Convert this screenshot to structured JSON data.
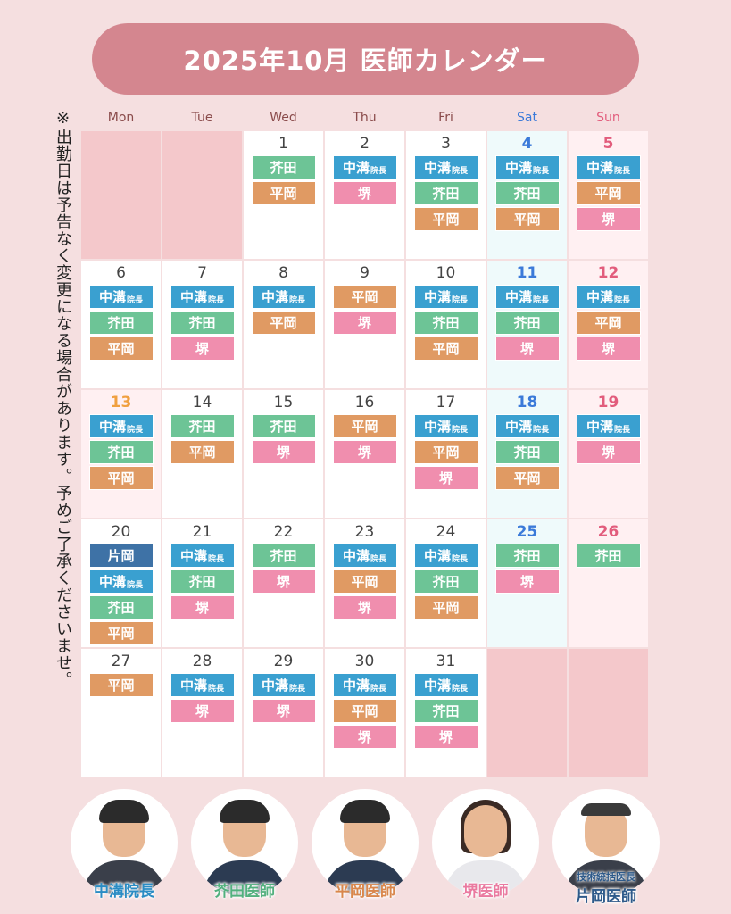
{
  "title": "2025年10月 医師カレンダー",
  "notice": "※出勤日は予告なく変更になる場合があります。予めご了承くださいませ。",
  "colors": {
    "banner": "#d4868f",
    "nakamizo": "#3aa0d0",
    "akuta": "#6dc496",
    "hiraoka": "#e09a63",
    "sakai": "#f08eae",
    "kataoka": "#3e72a6"
  },
  "weekdays": [
    {
      "label": "Mon",
      "kind": "weekday"
    },
    {
      "label": "Tue",
      "kind": "weekday"
    },
    {
      "label": "Wed",
      "kind": "weekday"
    },
    {
      "label": "Thu",
      "kind": "weekday"
    },
    {
      "label": "Fri",
      "kind": "weekday"
    },
    {
      "label": "Sat",
      "kind": "sat"
    },
    {
      "label": "Sun",
      "kind": "sun"
    }
  ],
  "doctor_labels": {
    "nakamizo": {
      "text": "中溝",
      "suffix": "院長"
    },
    "akuta": {
      "text": "芥田",
      "suffix": ""
    },
    "hiraoka": {
      "text": "平岡",
      "suffix": ""
    },
    "sakai": {
      "text": "堺",
      "suffix": ""
    },
    "kataoka": {
      "text": "片岡",
      "suffix": ""
    }
  },
  "weeks": [
    [
      {
        "day": "",
        "kind": "empty",
        "doctors": []
      },
      {
        "day": "",
        "kind": "empty",
        "doctors": []
      },
      {
        "day": "1",
        "kind": "weekday",
        "doctors": [
          "akuta",
          "hiraoka"
        ]
      },
      {
        "day": "2",
        "kind": "weekday",
        "doctors": [
          "nakamizo",
          "sakai"
        ]
      },
      {
        "day": "3",
        "kind": "weekday",
        "doctors": [
          "nakamizo",
          "akuta",
          "hiraoka"
        ]
      },
      {
        "day": "4",
        "kind": "sat",
        "doctors": [
          "nakamizo",
          "akuta",
          "hiraoka"
        ]
      },
      {
        "day": "5",
        "kind": "sun",
        "doctors": [
          "nakamizo",
          "hiraoka",
          "sakai"
        ]
      }
    ],
    [
      {
        "day": "6",
        "kind": "weekday",
        "doctors": [
          "nakamizo",
          "akuta",
          "hiraoka"
        ]
      },
      {
        "day": "7",
        "kind": "weekday",
        "doctors": [
          "nakamizo",
          "akuta",
          "sakai"
        ]
      },
      {
        "day": "8",
        "kind": "weekday",
        "doctors": [
          "nakamizo",
          "hiraoka"
        ]
      },
      {
        "day": "9",
        "kind": "weekday",
        "doctors": [
          "hiraoka",
          "sakai"
        ]
      },
      {
        "day": "10",
        "kind": "weekday",
        "doctors": [
          "nakamizo",
          "akuta",
          "hiraoka"
        ]
      },
      {
        "day": "11",
        "kind": "sat",
        "doctors": [
          "nakamizo",
          "akuta",
          "sakai"
        ]
      },
      {
        "day": "12",
        "kind": "sun",
        "doctors": [
          "nakamizo",
          "hiraoka",
          "sakai"
        ]
      }
    ],
    [
      {
        "day": "13",
        "kind": "hol",
        "doctors": [
          "nakamizo",
          "akuta",
          "hiraoka"
        ]
      },
      {
        "day": "14",
        "kind": "weekday",
        "doctors": [
          "akuta",
          "hiraoka"
        ]
      },
      {
        "day": "15",
        "kind": "weekday",
        "doctors": [
          "akuta",
          "sakai"
        ]
      },
      {
        "day": "16",
        "kind": "weekday",
        "doctors": [
          "hiraoka",
          "sakai"
        ]
      },
      {
        "day": "17",
        "kind": "weekday",
        "doctors": [
          "nakamizo",
          "hiraoka",
          "sakai"
        ]
      },
      {
        "day": "18",
        "kind": "sat",
        "doctors": [
          "nakamizo",
          "akuta",
          "hiraoka"
        ]
      },
      {
        "day": "19",
        "kind": "sun",
        "doctors": [
          "nakamizo",
          "sakai"
        ]
      }
    ],
    [
      {
        "day": "20",
        "kind": "weekday",
        "doctors": [
          "kataoka",
          "nakamizo",
          "akuta",
          "hiraoka"
        ]
      },
      {
        "day": "21",
        "kind": "weekday",
        "doctors": [
          "nakamizo",
          "akuta",
          "sakai"
        ]
      },
      {
        "day": "22",
        "kind": "weekday",
        "doctors": [
          "akuta",
          "sakai"
        ]
      },
      {
        "day": "23",
        "kind": "weekday",
        "doctors": [
          "nakamizo",
          "hiraoka",
          "sakai"
        ]
      },
      {
        "day": "24",
        "kind": "weekday",
        "doctors": [
          "nakamizo",
          "akuta",
          "hiraoka"
        ]
      },
      {
        "day": "25",
        "kind": "sat",
        "doctors": [
          "akuta",
          "sakai"
        ]
      },
      {
        "day": "26",
        "kind": "sun",
        "doctors": [
          "akuta"
        ]
      }
    ],
    [
      {
        "day": "27",
        "kind": "weekday",
        "doctors": [
          "hiraoka"
        ]
      },
      {
        "day": "28",
        "kind": "weekday",
        "doctors": [
          "nakamizo",
          "sakai"
        ]
      },
      {
        "day": "29",
        "kind": "weekday",
        "doctors": [
          "nakamizo",
          "sakai"
        ]
      },
      {
        "day": "30",
        "kind": "weekday",
        "doctors": [
          "nakamizo",
          "hiraoka",
          "sakai"
        ]
      },
      {
        "day": "31",
        "kind": "weekday",
        "doctors": [
          "nakamizo",
          "akuta",
          "sakai"
        ]
      },
      {
        "day": "",
        "kind": "empty",
        "doctors": []
      },
      {
        "day": "",
        "kind": "empty",
        "doctors": []
      }
    ]
  ],
  "portraits": [
    {
      "name": "中溝院長",
      "title": "",
      "style": "c1"
    },
    {
      "name": "芥田医師",
      "title": "",
      "style": "c2"
    },
    {
      "name": "平岡医師",
      "title": "",
      "style": "c3"
    },
    {
      "name": "堺医師",
      "title": "",
      "style": "c4"
    },
    {
      "name": "片岡医師",
      "title": "技術統括医長",
      "style": "c5"
    }
  ]
}
